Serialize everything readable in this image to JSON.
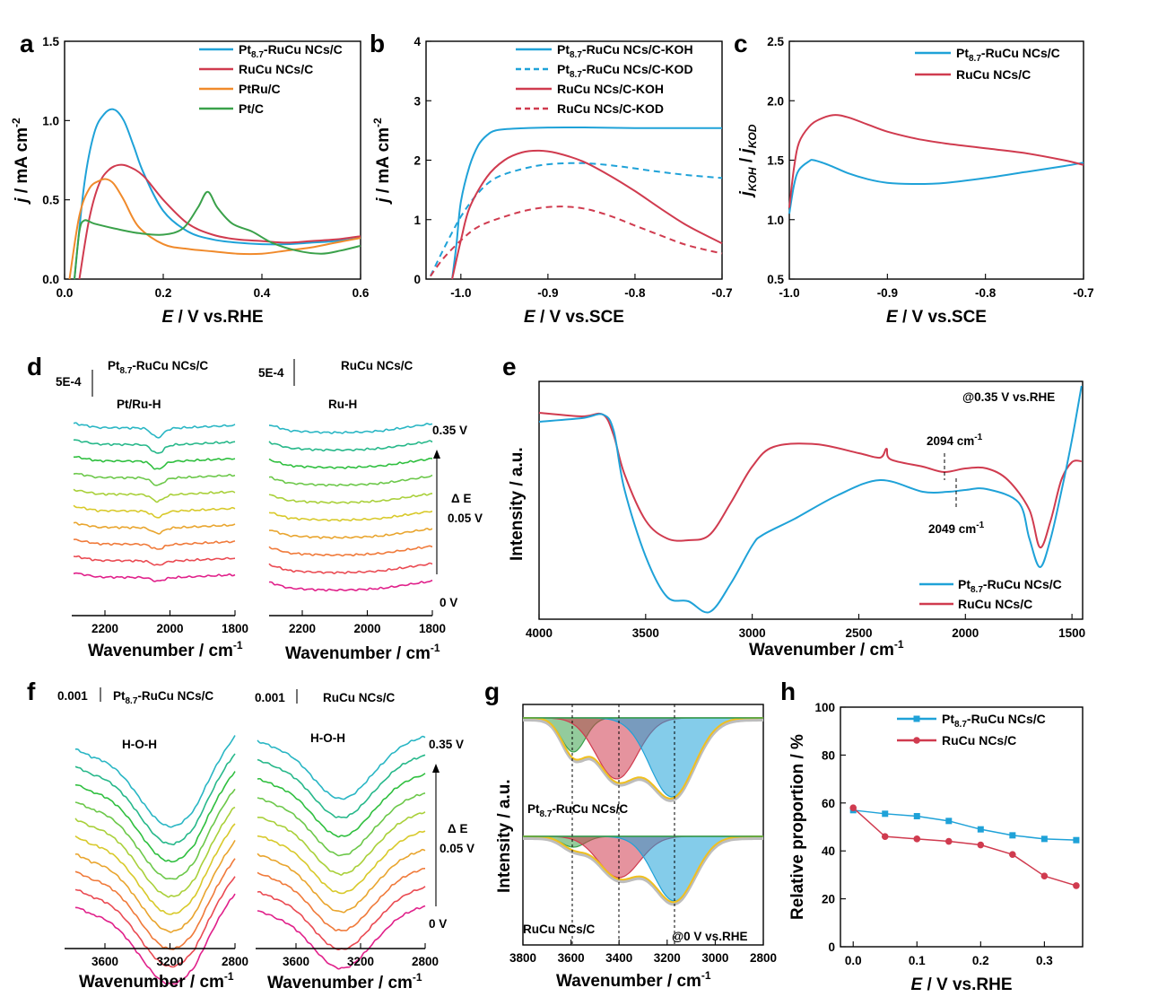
{
  "chart_data": [
    {
      "panel": "a",
      "type": "line",
      "xlabel_italic": "E",
      "xlabel": " / V vs.RHE",
      "ylabel_italic": "j",
      "ylabel": " / mA cm",
      "xlim": [
        0.0,
        0.6
      ],
      "ylim": [
        0.0,
        1.5
      ],
      "xticks": [
        "0.0",
        "0.2",
        "0.4",
        "0.6"
      ],
      "yticks": [
        "0.0",
        "0.5",
        "1.0",
        "1.5"
      ],
      "series": [
        {
          "name": "Pt8.7-RuCu NCs/C",
          "label": "Pt",
          "sub": "8.7",
          "rest": "-RuCu NCs/C",
          "color": "#1fa2d8",
          "dash": false,
          "points": [
            [
              0.02,
              0
            ],
            [
              0.04,
              0.6
            ],
            [
              0.06,
              0.92
            ],
            [
              0.08,
              1.04
            ],
            [
              0.1,
              1.07
            ],
            [
              0.12,
              1.0
            ],
            [
              0.14,
              0.84
            ],
            [
              0.16,
              0.67
            ],
            [
              0.2,
              0.43
            ],
            [
              0.25,
              0.3
            ],
            [
              0.3,
              0.25
            ],
            [
              0.35,
              0.23
            ],
            [
              0.4,
              0.22
            ],
            [
              0.45,
              0.22
            ],
            [
              0.5,
              0.23
            ],
            [
              0.55,
              0.24
            ],
            [
              0.6,
              0.26
            ]
          ]
        },
        {
          "name": "RuCu NCs/C",
          "label": "RuCu NCs/C",
          "color": "#d03b4f",
          "dash": false,
          "points": [
            [
              0.03,
              0
            ],
            [
              0.05,
              0.38
            ],
            [
              0.07,
              0.6
            ],
            [
              0.09,
              0.69
            ],
            [
              0.11,
              0.72
            ],
            [
              0.13,
              0.71
            ],
            [
              0.16,
              0.65
            ],
            [
              0.2,
              0.5
            ],
            [
              0.25,
              0.35
            ],
            [
              0.3,
              0.28
            ],
            [
              0.35,
              0.25
            ],
            [
              0.4,
              0.24
            ],
            [
              0.45,
              0.23
            ],
            [
              0.5,
              0.24
            ],
            [
              0.55,
              0.25
            ],
            [
              0.6,
              0.27
            ]
          ]
        },
        {
          "name": "PtRu/C",
          "label": "PtRu/C",
          "color": "#f08a2b",
          "dash": false,
          "points": [
            [
              0.01,
              0
            ],
            [
              0.03,
              0.4
            ],
            [
              0.05,
              0.57
            ],
            [
              0.07,
              0.62
            ],
            [
              0.085,
              0.63
            ],
            [
              0.1,
              0.6
            ],
            [
              0.12,
              0.5
            ],
            [
              0.15,
              0.33
            ],
            [
              0.2,
              0.22
            ],
            [
              0.25,
              0.19
            ],
            [
              0.3,
              0.175
            ],
            [
              0.35,
              0.16
            ],
            [
              0.4,
              0.16
            ],
            [
              0.45,
              0.18
            ],
            [
              0.5,
              0.2
            ],
            [
              0.55,
              0.23
            ],
            [
              0.6,
              0.26
            ]
          ]
        },
        {
          "name": "Pt/C",
          "label": "Pt/C",
          "color": "#3aa14a",
          "dash": false,
          "points": [
            [
              0.02,
              0
            ],
            [
              0.03,
              0.3
            ],
            [
              0.04,
              0.37
            ],
            [
              0.06,
              0.35
            ],
            [
              0.1,
              0.32
            ],
            [
              0.15,
              0.29
            ],
            [
              0.2,
              0.28
            ],
            [
              0.24,
              0.32
            ],
            [
              0.27,
              0.45
            ],
            [
              0.29,
              0.55
            ],
            [
              0.31,
              0.45
            ],
            [
              0.34,
              0.35
            ],
            [
              0.38,
              0.3
            ],
            [
              0.42,
              0.23
            ],
            [
              0.47,
              0.18
            ],
            [
              0.52,
              0.16
            ],
            [
              0.56,
              0.18
            ],
            [
              0.6,
              0.21
            ]
          ]
        }
      ]
    },
    {
      "panel": "b",
      "type": "line",
      "xlabel_italic": "E",
      "xlabel": " / V vs.SCE",
      "ylabel_italic": "j",
      "ylabel": " / mA cm",
      "xlim": [
        -1.04,
        -0.7
      ],
      "ylim": [
        0,
        4
      ],
      "xticks": [
        "-1.0",
        "-0.9",
        "-0.8",
        "-0.7"
      ],
      "yticks": [
        "0",
        "1",
        "2",
        "3",
        "4"
      ],
      "series": [
        {
          "name": "Pt8.7-RuCu NCs/C-KOH",
          "label": "Pt",
          "sub": "8.7",
          "rest": "-RuCu NCs/C-KOH",
          "color": "#1fa2d8",
          "dash": false,
          "points": [
            [
              -1.01,
              0
            ],
            [
              -1.005,
              0.6
            ],
            [
              -1.0,
              1.3
            ],
            [
              -0.99,
              1.9
            ],
            [
              -0.98,
              2.25
            ],
            [
              -0.97,
              2.42
            ],
            [
              -0.96,
              2.5
            ],
            [
              -0.94,
              2.53
            ],
            [
              -0.9,
              2.55
            ],
            [
              -0.85,
              2.55
            ],
            [
              -0.8,
              2.54
            ],
            [
              -0.75,
              2.54
            ],
            [
              -0.7,
              2.54
            ]
          ]
        },
        {
          "name": "Pt8.7-RuCu NCs/C-KOD",
          "label": "Pt",
          "sub": "8.7",
          "rest": "-RuCu NCs/C-KOD",
          "color": "#1fa2d8",
          "dash": true,
          "points": [
            [
              -1.035,
              0.05
            ],
            [
              -1.02,
              0.5
            ],
            [
              -1.0,
              1.05
            ],
            [
              -0.98,
              1.45
            ],
            [
              -0.96,
              1.7
            ],
            [
              -0.93,
              1.85
            ],
            [
              -0.9,
              1.93
            ],
            [
              -0.86,
              1.95
            ],
            [
              -0.82,
              1.9
            ],
            [
              -0.78,
              1.82
            ],
            [
              -0.74,
              1.75
            ],
            [
              -0.7,
              1.7
            ]
          ]
        },
        {
          "name": "RuCu NCs/C-KOH",
          "label": "RuCu NCs/C-KOH",
          "color": "#d03b4f",
          "dash": false,
          "points": [
            [
              -1.01,
              0
            ],
            [
              -1.0,
              0.65
            ],
            [
              -0.99,
              1.2
            ],
            [
              -0.97,
              1.72
            ],
            [
              -0.95,
              2.0
            ],
            [
              -0.93,
              2.13
            ],
            [
              -0.91,
              2.16
            ],
            [
              -0.89,
              2.12
            ],
            [
              -0.86,
              1.98
            ],
            [
              -0.83,
              1.75
            ],
            [
              -0.8,
              1.48
            ],
            [
              -0.77,
              1.18
            ],
            [
              -0.74,
              0.9
            ],
            [
              -0.7,
              0.6
            ]
          ]
        },
        {
          "name": "RuCu NCs/C-KOD",
          "label": "RuCu NCs/C-KOD",
          "color": "#d03b4f",
          "dash": true,
          "points": [
            [
              -1.035,
              0.05
            ],
            [
              -1.02,
              0.35
            ],
            [
              -1.0,
              0.65
            ],
            [
              -0.98,
              0.88
            ],
            [
              -0.95,
              1.05
            ],
            [
              -0.92,
              1.17
            ],
            [
              -0.89,
              1.22
            ],
            [
              -0.86,
              1.19
            ],
            [
              -0.83,
              1.07
            ],
            [
              -0.8,
              0.9
            ],
            [
              -0.77,
              0.73
            ],
            [
              -0.74,
              0.57
            ],
            [
              -0.7,
              0.43
            ]
          ]
        }
      ]
    },
    {
      "panel": "c",
      "type": "line",
      "xlabel_italic": "E",
      "xlabel": " / V vs.SCE",
      "ylabel": "jKOH / jKOD",
      "xlim": [
        -1.0,
        -0.7
      ],
      "ylim": [
        0.5,
        2.5
      ],
      "xticks": [
        "-1.0",
        "-0.9",
        "-0.8",
        "-0.7"
      ],
      "yticks": [
        "0.5",
        "1.0",
        "1.5",
        "2.0",
        "2.5"
      ],
      "series": [
        {
          "name": "Pt8.7-RuCu NCs/C",
          "label": "Pt",
          "sub": "8.7",
          "rest": "-RuCu NCs/C",
          "color": "#1fa2d8",
          "dash": false,
          "points": [
            [
              -1.0,
              1.05
            ],
            [
              -0.995,
              1.3
            ],
            [
              -0.99,
              1.42
            ],
            [
              -0.98,
              1.49
            ],
            [
              -0.975,
              1.5
            ],
            [
              -0.96,
              1.46
            ],
            [
              -0.94,
              1.39
            ],
            [
              -0.92,
              1.34
            ],
            [
              -0.9,
              1.31
            ],
            [
              -0.87,
              1.3
            ],
            [
              -0.84,
              1.31
            ],
            [
              -0.8,
              1.35
            ],
            [
              -0.76,
              1.4
            ],
            [
              -0.72,
              1.45
            ],
            [
              -0.7,
              1.48
            ]
          ]
        },
        {
          "name": "RuCu NCs/C",
          "label": "RuCu NCs/C",
          "color": "#d03b4f",
          "dash": false,
          "points": [
            [
              -1.0,
              1.1
            ],
            [
              -0.995,
              1.45
            ],
            [
              -0.99,
              1.65
            ],
            [
              -0.98,
              1.78
            ],
            [
              -0.97,
              1.84
            ],
            [
              -0.955,
              1.88
            ],
            [
              -0.94,
              1.86
            ],
            [
              -0.92,
              1.8
            ],
            [
              -0.9,
              1.74
            ],
            [
              -0.87,
              1.68
            ],
            [
              -0.84,
              1.64
            ],
            [
              -0.8,
              1.6
            ],
            [
              -0.76,
              1.56
            ],
            [
              -0.72,
              1.5
            ],
            [
              -0.7,
              1.46
            ]
          ]
        }
      ]
    },
    {
      "panel": "h",
      "type": "line",
      "xlabel_italic": "E",
      "xlabel": " / V vs.RHE",
      "ylabel": "Relative proportion / %",
      "xlim": [
        -0.02,
        0.36
      ],
      "ylim": [
        0,
        100
      ],
      "xticks": [
        "0.0",
        "0.1",
        "0.2",
        "0.3"
      ],
      "yticks": [
        "0",
        "20",
        "40",
        "60",
        "80",
        "100"
      ],
      "x": [
        0,
        0.05,
        0.1,
        0.15,
        0.2,
        0.25,
        0.3,
        0.35
      ],
      "series": [
        {
          "name": "Pt8.7-RuCu NCs/C",
          "label": "Pt",
          "sub": "8.7",
          "rest": "-RuCu NCs/C",
          "color": "#1fa2d8",
          "marker": "square",
          "values": [
            57,
            55.5,
            54.5,
            52.5,
            49,
            46.5,
            45,
            44.5
          ]
        },
        {
          "name": "RuCu NCs/C",
          "label": "RuCu NCs/C",
          "color": "#d03b4f",
          "marker": "circle",
          "values": [
            58,
            46,
            45,
            44,
            42.5,
            38.5,
            29.5,
            25.5
          ]
        }
      ]
    }
  ],
  "panel_d": {
    "letter": "d",
    "left_title": "Pt",
    "left_title_sub": "8.7",
    "left_title_rest": "-RuCu NCs/C",
    "left_peak": "Pt/Ru-H",
    "right_title": "RuCu NCs/C",
    "right_peak": "Ru-H",
    "scale": "5E-4",
    "xticks": [
      "2200",
      "2000",
      "1800"
    ],
    "xlabel": "Wavenumber / cm",
    "top_potential": "0.35 V",
    "bottom_potential": "0 V",
    "delta": "Δ E",
    "delta_value": "0.05 V"
  },
  "panel_e": {
    "letter": "e",
    "annotation": "@0.35 V vs.RHE",
    "peak1": "2094 cm",
    "peak2": "2049 cm",
    "xlabel": "Wavenumber / cm",
    "ylabel": "Intensity / a.u.",
    "xticks": [
      "4000",
      "3500",
      "3000",
      "2500",
      "2000",
      "1500"
    ],
    "legend": [
      {
        "label": "Pt",
        "sub": "8.7",
        "rest": "-RuCu NCs/C",
        "color": "#1fa2d8"
      },
      {
        "label": "RuCu NCs/C",
        "color": "#d03b4f"
      }
    ]
  },
  "panel_f": {
    "letter": "f",
    "left_title": "Pt",
    "left_title_sub": "8.7",
    "left_title_rest": "-RuCu NCs/C",
    "right_title": "RuCu NCs/C",
    "peak": "H-O-H",
    "scale": "0.001",
    "xticks": [
      "3600",
      "3200",
      "2800"
    ],
    "xlabel": "Wavenumber / cm",
    "top_potential": "0.35 V",
    "bottom_potential": "0 V",
    "delta": "Δ E",
    "delta_value": "0.05 V"
  },
  "panel_g": {
    "letter": "g",
    "ylabel": "Intensity / a.u.",
    "xlabel": "Wavenumber / cm",
    "xticks": [
      "3800",
      "3600",
      "3400",
      "3200",
      "3000",
      "2800"
    ],
    "top_label": "Pt",
    "top_label_sub": "8.7",
    "top_label_rest": "-RuCu NCs/C",
    "bottom_label": "RuCu NCs/C",
    "annotation": "@0 V vs.RHE"
  },
  "colors": {
    "blue": "#1fa2d8",
    "red": "#d03b4f",
    "orange": "#f08a2b",
    "green": "#3aa14a"
  },
  "spectrum_colors": [
    "#e0208a",
    "#ea4a52",
    "#f07a3a",
    "#e9a52e",
    "#d8c92a",
    "#a9d03a",
    "#6cc84a",
    "#2fbf3f",
    "#27b88a",
    "#29b6c4"
  ]
}
